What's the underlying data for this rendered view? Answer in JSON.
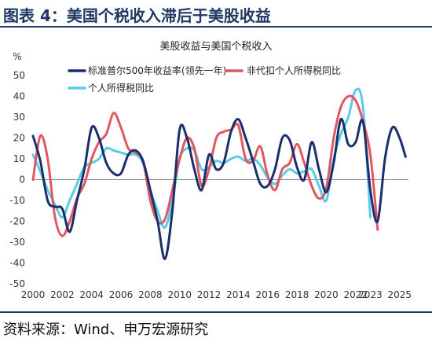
{
  "header": {
    "title": "图表 4：美国个税收入滞后于美股收益"
  },
  "footer": {
    "source": "资料来源：Wind、申万宏源研究"
  },
  "colors": {
    "navy": "#1a2f6b",
    "red": "#e0575f",
    "cyan": "#5bcbe8",
    "rule": "#1f3864"
  },
  "chart_data": {
    "type": "line",
    "title": "美股收益与美国个税收入",
    "ylabel": "%",
    "ylim": [
      -50,
      50
    ],
    "xlim": [
      2000,
      2025.6
    ],
    "y_ticks": [
      "50",
      "40",
      "30",
      "20",
      "10",
      "0",
      "-10",
      "-20",
      "-30",
      "-40",
      "-50"
    ],
    "x_ticks": [
      "2000",
      "2002",
      "2004",
      "2006",
      "2008",
      "2010",
      "2012",
      "2014",
      "2016",
      "2018",
      "2020",
      "2022",
      "2023",
      "2025"
    ],
    "legend": {
      "placement": "top"
    },
    "series": [
      {
        "name": "标准普尔500年收益率(领先一年)",
        "color": "#1a2f6b",
        "x": [
          2000,
          2000.5,
          2001,
          2001.5,
          2002,
          2002.5,
          2003,
          2003.5,
          2004,
          2004.5,
          2005,
          2005.5,
          2006,
          2006.5,
          2007,
          2007.5,
          2008,
          2008.5,
          2009,
          2009.5,
          2010,
          2010.5,
          2011,
          2011.5,
          2012,
          2012.5,
          2013,
          2013.5,
          2014,
          2014.5,
          2015,
          2015.5,
          2016,
          2016.5,
          2017,
          2017.5,
          2018,
          2018.5,
          2019,
          2019.5,
          2020,
          2020.5,
          2021,
          2021.5,
          2022,
          2022.5,
          2023,
          2023.5,
          2024,
          2024.5,
          2025,
          2025.4
        ],
        "y": [
          21,
          9,
          -10,
          -13,
          -14,
          -25,
          -10,
          5,
          25,
          20,
          8,
          3,
          3,
          12,
          14,
          9,
          -5,
          -20,
          -38,
          -15,
          24,
          20,
          5,
          -5,
          12,
          5,
          8,
          23,
          29,
          20,
          9,
          -2,
          -3,
          5,
          20,
          19,
          6,
          0,
          18,
          5,
          -6,
          8,
          29,
          17,
          18,
          28,
          -5,
          -20,
          10,
          25,
          20,
          11
        ]
      },
      {
        "name": "非代扣个人所得税同比",
        "color": "#e0575f",
        "x": [
          2000,
          2000.5,
          2001,
          2001.5,
          2002,
          2002.5,
          2003,
          2003.5,
          2004,
          2004.5,
          2005,
          2005.5,
          2006,
          2006.5,
          2007,
          2007.5,
          2008,
          2008.5,
          2009,
          2009.5,
          2010,
          2010.5,
          2011,
          2011.5,
          2012,
          2012.5,
          2013,
          2013.5,
          2014,
          2014.5,
          2015,
          2015.5,
          2016,
          2016.5,
          2017,
          2017.5,
          2018,
          2018.5,
          2019,
          2019.5,
          2020,
          2020.5,
          2021,
          2021.5,
          2022,
          2022.5,
          2023,
          2023.5
        ],
        "y": [
          0,
          21,
          10,
          -18,
          -27,
          -20,
          -9,
          -2,
          10,
          18,
          22,
          32,
          25,
          15,
          13,
          9,
          -10,
          -20,
          -19,
          -5,
          10,
          20,
          15,
          -3,
          5,
          20,
          23,
          24,
          26,
          10,
          9,
          16,
          2,
          -5,
          5,
          8,
          17,
          8,
          -3,
          -9,
          -4,
          20,
          35,
          40,
          38,
          28,
          12,
          -24
        ]
      },
      {
        "name": "个人所得税同比",
        "color": "#5bcbe8",
        "x": [
          2000,
          2000.5,
          2001,
          2001.5,
          2002,
          2002.5,
          2003,
          2003.5,
          2004,
          2004.5,
          2005,
          2005.5,
          2006,
          2006.5,
          2007,
          2007.5,
          2008,
          2008.5,
          2009,
          2009.5,
          2010,
          2010.5,
          2011,
          2011.5,
          2012,
          2012.5,
          2013,
          2013.5,
          2014,
          2014.5,
          2015,
          2015.5,
          2016,
          2016.5,
          2017,
          2017.5,
          2018,
          2018.5,
          2019,
          2019.5,
          2020,
          2020.5,
          2021,
          2021.5,
          2022,
          2022.5,
          2023
        ],
        "y": [
          12,
          4,
          -5,
          -12,
          -18,
          -10,
          -2,
          6,
          8,
          10,
          15,
          14,
          13,
          12,
          12,
          8,
          -5,
          -15,
          -23,
          -10,
          10,
          15,
          14,
          5,
          6,
          9,
          8,
          10,
          11,
          9,
          10,
          7,
          1,
          -2,
          2,
          5,
          3,
          4,
          5,
          -3,
          -10,
          10,
          22,
          30,
          43,
          35,
          -18
        ]
      }
    ]
  }
}
